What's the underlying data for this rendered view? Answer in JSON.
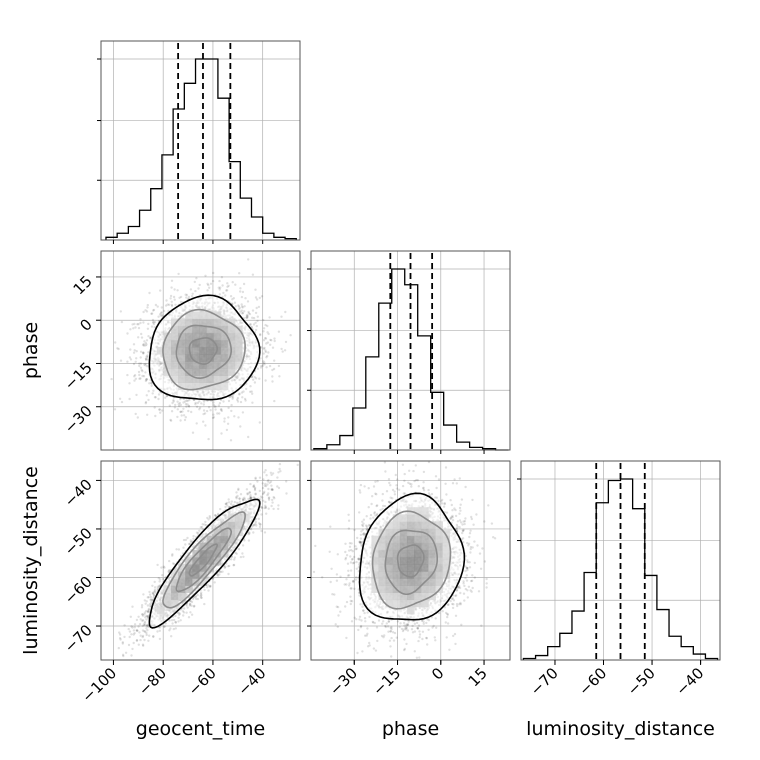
{
  "chart_data": {
    "type": "corner",
    "parameters": [
      "geocent_time",
      "phase",
      "luminosity_distance"
    ],
    "ranges": {
      "geocent_time": [
        -105,
        -25
      ],
      "phase": [
        -45,
        24
      ],
      "luminosity_distance": [
        -77,
        -36
      ]
    },
    "ticks": {
      "geocent_time": [
        -100,
        -80,
        -60,
        -40
      ],
      "phase": [
        -30,
        -15,
        0,
        15
      ],
      "luminosity_distance": [
        -70,
        -60,
        -50,
        -40
      ]
    },
    "tick_labels": {
      "geocent_time": [
        "−100",
        "−80",
        "−60",
        "−40"
      ],
      "phase": [
        "−30",
        "−15",
        "0",
        "15"
      ],
      "luminosity_distance": [
        "−70",
        "−60",
        "−50",
        "−40"
      ]
    },
    "quantiles": {
      "geocent_time": [
        -74,
        -64,
        -53
      ],
      "phase": [
        -17.5,
        -10.5,
        -3
      ],
      "luminosity_distance": [
        -61.5,
        -56.5,
        -51.5
      ]
    },
    "histograms": {
      "geocent_time": {
        "edges": [
          -103,
          -98.5,
          -94,
          -89.5,
          -85,
          -80.5,
          -76,
          -71.5,
          -67,
          -62.5,
          -58,
          -53.5,
          -49,
          -44.5,
          -40,
          -35.5,
          -31,
          -26.5
        ],
        "counts": [
          2,
          5,
          10,
          22,
          38,
          63,
          97,
          116,
          134,
          134,
          105,
          58,
          31,
          17,
          5,
          2,
          1
        ]
      },
      "phase": {
        "edges": [
          -44,
          -39.5,
          -35,
          -30.5,
          -26,
          -21.5,
          -17,
          -12.5,
          -8,
          -3.5,
          1,
          5.5,
          10,
          14.5,
          19,
          23.5
        ],
        "counts": [
          1,
          4,
          11,
          32,
          71,
          112,
          138,
          126,
          87,
          44,
          19,
          6,
          2,
          1,
          0
        ]
      },
      "luminosity_distance": {
        "edges": [
          -76.5,
          -74,
          -71.5,
          -69,
          -66.5,
          -64,
          -61.5,
          -59,
          -56.5,
          -54,
          -51.5,
          -49,
          -46.5,
          -44,
          -41.5,
          -39,
          -36.5
        ],
        "counts": [
          1,
          3,
          9,
          18,
          33,
          59,
          106,
          121,
          122,
          102,
          57,
          34,
          16,
          9,
          4,
          1
        ]
      }
    },
    "pairs": [
      {
        "x": "geocent_time",
        "y": "phase",
        "mean": [
          -64,
          -10.5
        ],
        "std": [
          11,
          9
        ],
        "rho": 0.05,
        "samples": 3500
      },
      {
        "x": "geocent_time",
        "y": "luminosity_distance",
        "mean": [
          -64,
          -56.5
        ],
        "std": [
          11,
          6.5
        ],
        "rho": 0.9,
        "samples": 3500
      },
      {
        "x": "phase",
        "y": "luminosity_distance",
        "mean": [
          -10.5,
          -56.5
        ],
        "std": [
          9,
          6.5
        ],
        "rho": 0.1,
        "samples": 3500
      }
    ],
    "contour_levels_sigma": [
      0.5,
      1,
      1.5,
      2
    ],
    "grid": true
  },
  "colors": {
    "hist_line": "#000000",
    "scatter": "#000000",
    "grid": "#b0b0b0"
  }
}
